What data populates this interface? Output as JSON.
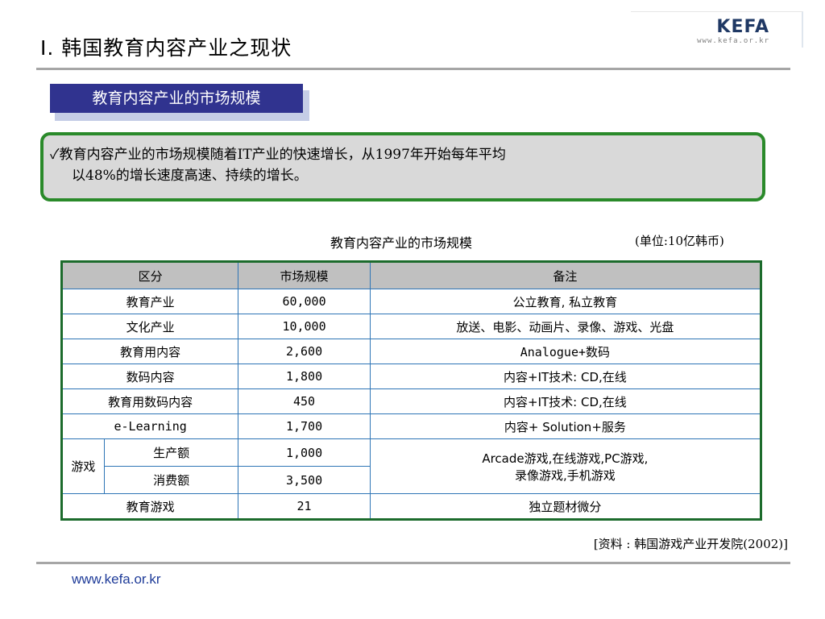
{
  "title": "Ⅰ. 韩国教育内容产业之现状",
  "logo": {
    "mark": "KEFA",
    "url": "www.kefa.or.kr"
  },
  "section_label": "教育内容产业的市场规模",
  "callout": {
    "line1": "✓教育内容产业的市场规模随着IT产业的快速增长，从1997年开始每年平均",
    "line2": "以48%的增长速度高速、持续的增长。"
  },
  "table": {
    "caption": "教育内容产业的市场规模",
    "unit": "(单位:10亿韩币)",
    "headers": [
      "区分",
      "市场规模",
      "备注"
    ],
    "rows": [
      {
        "category": "教育产业",
        "value": "60,000",
        "note": "公立教育, 私立教育"
      },
      {
        "category": "文化产业",
        "value": "10,000",
        "note": "放送、电影、动画片、录像、游戏、光盘"
      },
      {
        "category": "教育用内容",
        "value": "2,600",
        "note": "Analogue+数码"
      },
      {
        "category": "数码内容",
        "value": "1,800",
        "note": "内容+IT技术: CD,在线"
      },
      {
        "category": "教育用数码内容",
        "value": "450",
        "note": "内容+IT技术: CD,在线"
      },
      {
        "category": "e-Learning",
        "value": "1,700",
        "note": "内容+ Solution+服务"
      }
    ],
    "game": {
      "label": "游戏",
      "production_label": "生产额",
      "production_value": "1,000",
      "consumption_label": "消费额",
      "consumption_value": "3,500",
      "note_line1": "Arcade游戏,在线游戏,PC游戏,",
      "note_line2": "录像游戏,手机游戏"
    },
    "last_row": {
      "category": "教育游戏",
      "value": "21",
      "note": "独立题材微分"
    }
  },
  "source": "[资料 : 韩国游戏产业开发院(2002)]",
  "footer_url": "www.kefa.or.kr"
}
